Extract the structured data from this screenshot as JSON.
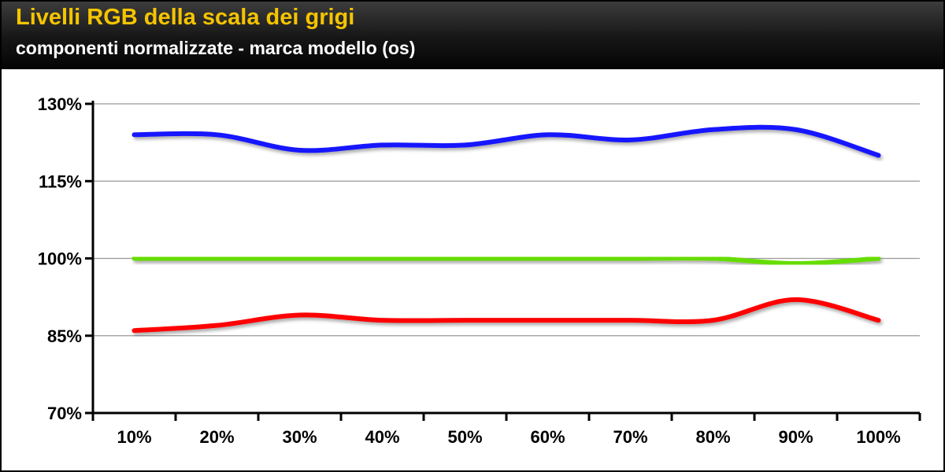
{
  "header": {
    "title": "Livelli RGB della scala dei grigi",
    "subtitle": "componenti normalizzate - marca modello (os)"
  },
  "colors": {
    "title": "#f5c400",
    "blue": "#1414ff",
    "green": "#66dd00",
    "red": "#ff0000",
    "grid": "#999999"
  },
  "chart_data": {
    "type": "line",
    "title": "Livelli RGB della scala dei grigi",
    "subtitle": "componenti normalizzate - marca modello (os)",
    "categories": [
      "10%",
      "20%",
      "30%",
      "40%",
      "50%",
      "60%",
      "70%",
      "80%",
      "90%",
      "100%"
    ],
    "y_ticks": [
      "70%",
      "85%",
      "100%",
      "115%",
      "130%"
    ],
    "ylim": [
      70,
      130
    ],
    "grid": true,
    "legend": "none",
    "series": [
      {
        "color": "#1414ff",
        "values": [
          124,
          124,
          121,
          122,
          122,
          124,
          123,
          125,
          125,
          120
        ]
      },
      {
        "color": "#66dd00",
        "values": [
          100,
          100,
          100,
          100,
          100,
          100,
          100,
          100,
          99,
          100
        ]
      },
      {
        "color": "#ff0000",
        "values": [
          86,
          87,
          89,
          88,
          88,
          88,
          88,
          88,
          92,
          88
        ]
      }
    ]
  }
}
